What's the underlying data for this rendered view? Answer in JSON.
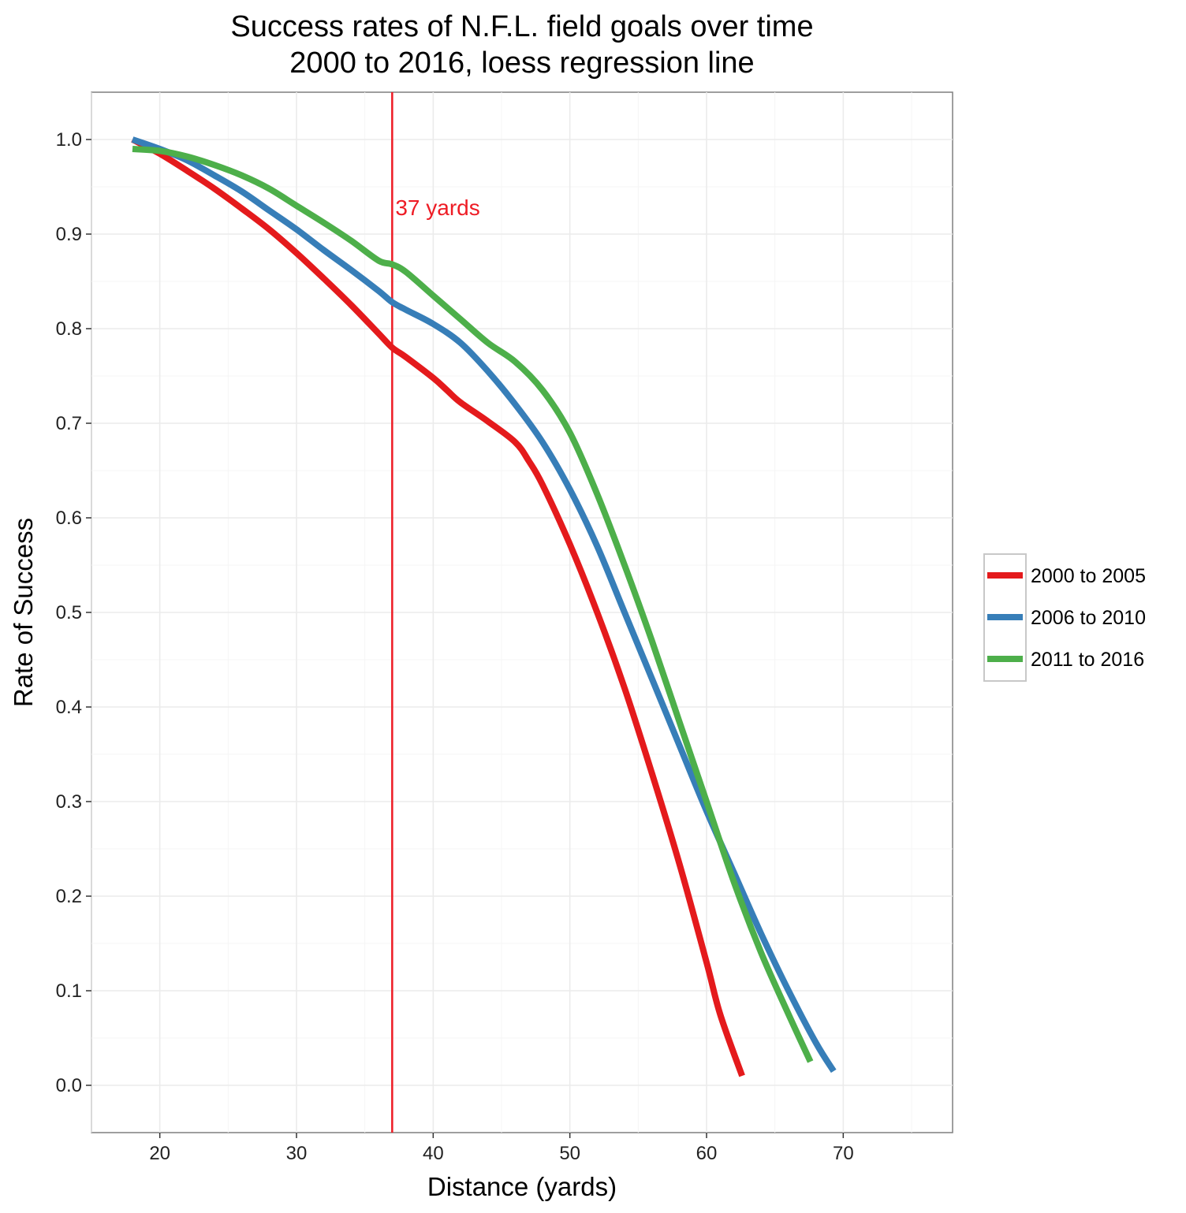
{
  "chart_data": {
    "type": "line",
    "title": "Success rates of N.F.L. field goals over time",
    "subtitle": "2000 to 2016, loess regression line",
    "xlabel": "Distance (yards)",
    "ylabel": "Rate of Success",
    "xlim": [
      15,
      78
    ],
    "ylim": [
      -0.05,
      1.05
    ],
    "x_ticks": [
      20,
      30,
      40,
      50,
      60,
      70
    ],
    "y_ticks": [
      0.0,
      0.1,
      0.2,
      0.3,
      0.4,
      0.5,
      0.6,
      0.7,
      0.8,
      0.9,
      1.0
    ],
    "x_tick_labels": [
      "20",
      "30",
      "40",
      "50",
      "60",
      "70"
    ],
    "y_tick_labels": [
      "0.0",
      "0.1",
      "0.2",
      "0.3",
      "0.4",
      "0.5",
      "0.6",
      "0.7",
      "0.8",
      "0.9",
      "1.0"
    ],
    "grid": true,
    "legend_position": "right",
    "vline": {
      "x": 37,
      "label": "37 yards",
      "color": "#ee1c25"
    },
    "series": [
      {
        "name": "2000 to 2005",
        "color": "#e41a1c",
        "points": [
          [
            18,
            1.0
          ],
          [
            20,
            0.985
          ],
          [
            22,
            0.967
          ],
          [
            24,
            0.948
          ],
          [
            26,
            0.927
          ],
          [
            28,
            0.905
          ],
          [
            30,
            0.88
          ],
          [
            32,
            0.853
          ],
          [
            34,
            0.825
          ],
          [
            36,
            0.795
          ],
          [
            37,
            0.78
          ],
          [
            38,
            0.77
          ],
          [
            40,
            0.748
          ],
          [
            41,
            0.735
          ],
          [
            42,
            0.722
          ],
          [
            44,
            0.702
          ],
          [
            46,
            0.68
          ],
          [
            47,
            0.66
          ],
          [
            48,
            0.635
          ],
          [
            50,
            0.572
          ],
          [
            52,
            0.5
          ],
          [
            54,
            0.42
          ],
          [
            56,
            0.33
          ],
          [
            58,
            0.235
          ],
          [
            60,
            0.13
          ],
          [
            61,
            0.075
          ],
          [
            62.6,
            0.01
          ]
        ]
      },
      {
        "name": "2006 to 2010",
        "color": "#377eb8",
        "points": [
          [
            18,
            1.0
          ],
          [
            20,
            0.99
          ],
          [
            22,
            0.978
          ],
          [
            24,
            0.962
          ],
          [
            26,
            0.945
          ],
          [
            28,
            0.925
          ],
          [
            30,
            0.905
          ],
          [
            32,
            0.883
          ],
          [
            34,
            0.862
          ],
          [
            36,
            0.84
          ],
          [
            37,
            0.828
          ],
          [
            38,
            0.82
          ],
          [
            40,
            0.805
          ],
          [
            42,
            0.785
          ],
          [
            44,
            0.755
          ],
          [
            46,
            0.72
          ],
          [
            48,
            0.68
          ],
          [
            50,
            0.63
          ],
          [
            52,
            0.57
          ],
          [
            54,
            0.5
          ],
          [
            56,
            0.43
          ],
          [
            58,
            0.36
          ],
          [
            60,
            0.29
          ],
          [
            62,
            0.225
          ],
          [
            64,
            0.16
          ],
          [
            66,
            0.1
          ],
          [
            68,
            0.045
          ],
          [
            69.3,
            0.015
          ]
        ]
      },
      {
        "name": "2011 to 2016",
        "color": "#4daf4a",
        "points": [
          [
            18,
            0.99
          ],
          [
            20,
            0.988
          ],
          [
            22,
            0.982
          ],
          [
            24,
            0.973
          ],
          [
            26,
            0.962
          ],
          [
            28,
            0.948
          ],
          [
            30,
            0.93
          ],
          [
            32,
            0.912
          ],
          [
            34,
            0.893
          ],
          [
            36,
            0.872
          ],
          [
            37,
            0.868
          ],
          [
            38,
            0.86
          ],
          [
            40,
            0.835
          ],
          [
            42,
            0.81
          ],
          [
            44,
            0.785
          ],
          [
            46,
            0.765
          ],
          [
            48,
            0.735
          ],
          [
            50,
            0.69
          ],
          [
            52,
            0.625
          ],
          [
            54,
            0.55
          ],
          [
            56,
            0.47
          ],
          [
            58,
            0.385
          ],
          [
            60,
            0.3
          ],
          [
            62,
            0.215
          ],
          [
            64,
            0.14
          ],
          [
            66,
            0.075
          ],
          [
            67.6,
            0.025
          ]
        ]
      }
    ]
  }
}
